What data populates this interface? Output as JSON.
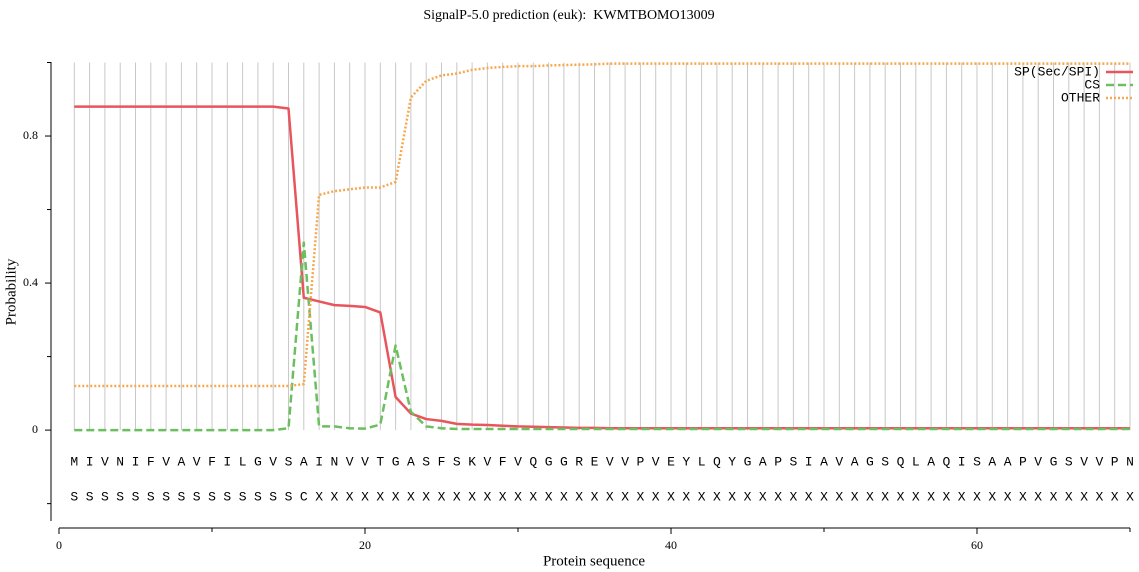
{
  "chart_data": {
    "type": "line",
    "title": "SignalP-5.0 prediction (euk):  KWMTBOMO13009",
    "xlabel": "Protein sequence",
    "ylabel": "Probability",
    "x": [
      1,
      2,
      3,
      4,
      5,
      6,
      7,
      8,
      9,
      10,
      11,
      12,
      13,
      14,
      15,
      16,
      17,
      18,
      19,
      20,
      21,
      22,
      23,
      24,
      25,
      26,
      27,
      28,
      29,
      30,
      31,
      32,
      33,
      34,
      35,
      36,
      37,
      38,
      39,
      40,
      41,
      42,
      43,
      44,
      45,
      46,
      47,
      48,
      49,
      50,
      51,
      52,
      53,
      54,
      55,
      56,
      57,
      58,
      59,
      60,
      61,
      62,
      63,
      64,
      65,
      66,
      67,
      68,
      69,
      70
    ],
    "series": [
      {
        "name": "SP(Sec/SPI)",
        "color": "#e8555d",
        "dash": "solid",
        "values": [
          0.88,
          0.88,
          0.88,
          0.88,
          0.88,
          0.88,
          0.88,
          0.88,
          0.88,
          0.88,
          0.88,
          0.88,
          0.88,
          0.88,
          0.875,
          0.36,
          0.35,
          0.34,
          0.338,
          0.335,
          0.32,
          0.09,
          0.045,
          0.03,
          0.025,
          0.017,
          0.015,
          0.014,
          0.012,
          0.01,
          0.009,
          0.008,
          0.007,
          0.006,
          0.006,
          0.005,
          0.005,
          0.005,
          0.005,
          0.005,
          0.005,
          0.005,
          0.005,
          0.005,
          0.005,
          0.005,
          0.005,
          0.005,
          0.005,
          0.005,
          0.005,
          0.005,
          0.005,
          0.005,
          0.005,
          0.005,
          0.005,
          0.005,
          0.005,
          0.005,
          0.005,
          0.005,
          0.005,
          0.005,
          0.005,
          0.005,
          0.005,
          0.005,
          0.005,
          0.005
        ]
      },
      {
        "name": "CS",
        "color": "#6bbf5f",
        "dash": "dashed",
        "values": [
          0,
          0,
          0,
          0,
          0,
          0,
          0,
          0,
          0,
          0,
          0,
          0,
          0,
          0,
          0.005,
          0.51,
          0.01,
          0.01,
          0.005,
          0.004,
          0.015,
          0.23,
          0.05,
          0.01,
          0.005,
          0.003,
          0.003,
          0.003,
          0.003,
          0.003,
          0.003,
          0.003,
          0.003,
          0.003,
          0.003,
          0.003,
          0.003,
          0.003,
          0.003,
          0.003,
          0.003,
          0.003,
          0.003,
          0.003,
          0.003,
          0.003,
          0.003,
          0.003,
          0.003,
          0.003,
          0.003,
          0.003,
          0.003,
          0.003,
          0.003,
          0.003,
          0.003,
          0.003,
          0.003,
          0.003,
          0.003,
          0.003,
          0.003,
          0.003,
          0.003,
          0.003,
          0.003,
          0.003,
          0.003,
          0.003
        ]
      },
      {
        "name": "OTHER",
        "color": "#f4a84f",
        "dash": "dotted",
        "values": [
          0.12,
          0.12,
          0.12,
          0.12,
          0.12,
          0.12,
          0.12,
          0.12,
          0.12,
          0.12,
          0.12,
          0.12,
          0.12,
          0.12,
          0.12,
          0.125,
          0.64,
          0.65,
          0.655,
          0.66,
          0.66,
          0.675,
          0.905,
          0.95,
          0.965,
          0.97,
          0.98,
          0.985,
          0.988,
          0.99,
          0.99,
          0.992,
          0.993,
          0.994,
          0.995,
          0.997,
          0.997,
          0.997,
          0.997,
          0.997,
          0.997,
          0.997,
          0.997,
          0.997,
          0.997,
          0.997,
          0.997,
          0.997,
          0.997,
          0.997,
          0.997,
          0.997,
          0.997,
          0.997,
          0.997,
          0.997,
          0.997,
          0.997,
          0.997,
          0.997,
          0.997,
          0.997,
          0.997,
          0.997,
          0.997,
          0.997,
          0.997,
          0.997,
          0.997,
          0.997
        ]
      }
    ],
    "sequence": [
      "M",
      "I",
      "V",
      "N",
      "I",
      "F",
      "V",
      "A",
      "V",
      "F",
      "I",
      "L",
      "G",
      "V",
      "S",
      "A",
      "I",
      "N",
      "V",
      "V",
      "T",
      "G",
      "A",
      "S",
      "F",
      "S",
      "K",
      "V",
      "F",
      "V",
      "Q",
      "G",
      "G",
      "R",
      "E",
      "V",
      "V",
      "P",
      "V",
      "E",
      "Y",
      "L",
      "Q",
      "Y",
      "G",
      "A",
      "P",
      "S",
      "I",
      "A",
      "V",
      "A",
      "G",
      "S",
      "Q",
      "L",
      "A",
      "Q",
      "I",
      "S",
      "A",
      "A",
      "P",
      "V",
      "G",
      "S",
      "V",
      "V",
      "P",
      "N"
    ],
    "labels": [
      "S",
      "S",
      "S",
      "S",
      "S",
      "S",
      "S",
      "S",
      "S",
      "S",
      "S",
      "S",
      "S",
      "S",
      "S",
      "C",
      "X",
      "X",
      "X",
      "X",
      "X",
      "X",
      "X",
      "X",
      "X",
      "X",
      "X",
      "X",
      "X",
      "X",
      "X",
      "X",
      "X",
      "X",
      "X",
      "X",
      "X",
      "X",
      "X",
      "X",
      "X",
      "X",
      "X",
      "X",
      "X",
      "X",
      "X",
      "X",
      "X",
      "X",
      "X",
      "X",
      "X",
      "X",
      "X",
      "X",
      "X",
      "X",
      "X",
      "X",
      "X",
      "X",
      "X",
      "X",
      "X",
      "X",
      "X",
      "X",
      "X",
      "X"
    ],
    "xlim": [
      0,
      70
    ],
    "ylim": [
      -0.25,
      1.0
    ],
    "xticks": [
      0,
      20,
      40,
      60
    ],
    "xminorticks": [
      10,
      30,
      50,
      70
    ],
    "yticks": [
      0,
      0.4,
      0.8
    ],
    "yminorticks": [
      -0.2,
      0.2,
      0.6,
      1.0
    ],
    "grid": true,
    "legend": "upper right"
  }
}
